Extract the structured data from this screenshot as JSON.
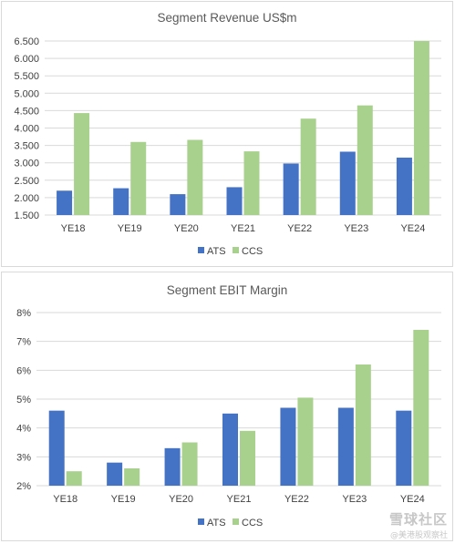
{
  "colors": {
    "ats": "#4472C4",
    "ccs": "#A9D18E",
    "grid": "#d9d9d9",
    "text": "#404040"
  },
  "chart_data": [
    {
      "type": "bar",
      "title": "Segment Revenue  US$m",
      "xlabel": "",
      "ylabel": "",
      "categories": [
        "YE18",
        "YE19",
        "YE20",
        "YE21",
        "YE22",
        "YE23",
        "YE24"
      ],
      "ylim": [
        1.5,
        6.5
      ],
      "yticks": [
        1.5,
        2.0,
        2.5,
        3.0,
        3.5,
        4.0,
        4.5,
        5.0,
        5.5,
        6.0,
        6.5
      ],
      "ytick_labels": [
        "1.500",
        "2.000",
        "2.500",
        "3.000",
        "3.500",
        "4.000",
        "4.500",
        "5.000",
        "5.500",
        "6.000",
        "6.500"
      ],
      "grid": true,
      "legend_position": "bottom",
      "series": [
        {
          "name": "ATS",
          "values": [
            2.2,
            2.27,
            2.1,
            2.3,
            2.98,
            3.32,
            3.15
          ]
        },
        {
          "name": "CCS",
          "values": [
            4.43,
            3.6,
            3.66,
            3.33,
            4.27,
            4.65,
            6.5
          ]
        }
      ]
    },
    {
      "type": "bar",
      "title": "Segment EBIT Margin",
      "xlabel": "",
      "ylabel": "",
      "categories": [
        "YE18",
        "YE19",
        "YE20",
        "YE21",
        "YE22",
        "YE23",
        "YE24"
      ],
      "ylim": [
        2,
        8
      ],
      "yticks": [
        2,
        3,
        4,
        5,
        6,
        7,
        8
      ],
      "ytick_labels": [
        "2%",
        "3%",
        "4%",
        "5%",
        "6%",
        "7%",
        "8%"
      ],
      "grid": true,
      "legend_position": "bottom",
      "series": [
        {
          "name": "ATS",
          "values": [
            4.6,
            2.8,
            3.3,
            4.5,
            4.7,
            4.7,
            4.6
          ]
        },
        {
          "name": "CCS",
          "values": [
            2.5,
            2.6,
            3.5,
            3.9,
            5.05,
            6.2,
            7.4
          ]
        }
      ]
    }
  ],
  "watermark": {
    "main": "雪球社区",
    "sub": "@美港股观察社"
  }
}
